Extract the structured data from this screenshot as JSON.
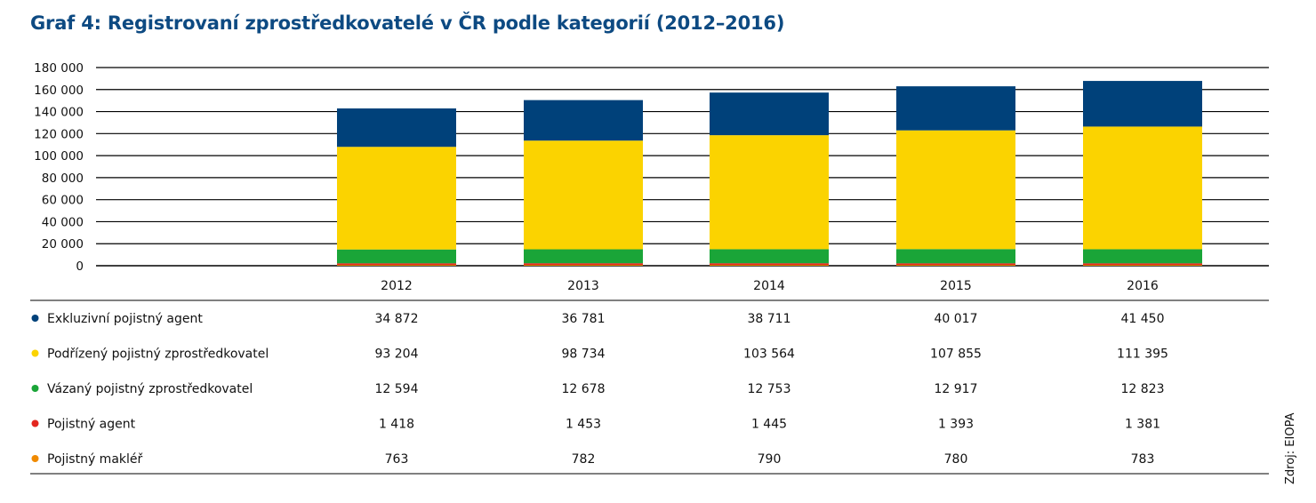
{
  "title": "Graf 4: Registrovaní zprostředkovatelé v ČR podle kategorií (2012–2016)",
  "source": "Zdroj: EIOPA",
  "chart_data": {
    "type": "bar",
    "stacked": true,
    "categories": [
      "2012",
      "2013",
      "2014",
      "2015",
      "2016"
    ],
    "ylim": [
      0,
      180000
    ],
    "yticks": [
      0,
      20000,
      40000,
      60000,
      80000,
      100000,
      120000,
      140000,
      160000,
      180000
    ],
    "ytick_labels": [
      "0",
      "20 000",
      "40 000",
      "60 000",
      "80 000",
      "100 000",
      "120 000",
      "140 000",
      "160 000",
      "180 000"
    ],
    "grid": true,
    "legend": "table-below",
    "series": [
      {
        "name": "Exkluzivní pojistný agent",
        "color": "#00417a",
        "values": [
          34872,
          36781,
          38711,
          40017,
          41450
        ],
        "labels": [
          "34 872",
          "36 781",
          "38 711",
          "40 017",
          "41 450"
        ]
      },
      {
        "name": "Podřízený pojistný zprostředkovatel",
        "color": "#fbd300",
        "values": [
          93204,
          98734,
          103564,
          107855,
          111395
        ],
        "labels": [
          "93 204",
          "98 734",
          "103 564",
          "107 855",
          "111 395"
        ]
      },
      {
        "name": "Vázaný pojistný zprostředkovatel",
        "color": "#1aa538",
        "values": [
          12594,
          12678,
          12753,
          12917,
          12823
        ],
        "labels": [
          "12 594",
          "12 678",
          "12 753",
          "12 917",
          "12 823"
        ]
      },
      {
        "name": "Pojistný agent",
        "color": "#e3261f",
        "values": [
          1418,
          1453,
          1445,
          1393,
          1381
        ],
        "labels": [
          "1 418",
          "1 453",
          "1 445",
          "1 393",
          "1 381"
        ]
      },
      {
        "name": "Pojistný makléř",
        "color": "#f08a00",
        "values": [
          763,
          782,
          790,
          780,
          783
        ],
        "labels": [
          "763",
          "782",
          "790",
          "780",
          "783"
        ]
      }
    ]
  }
}
